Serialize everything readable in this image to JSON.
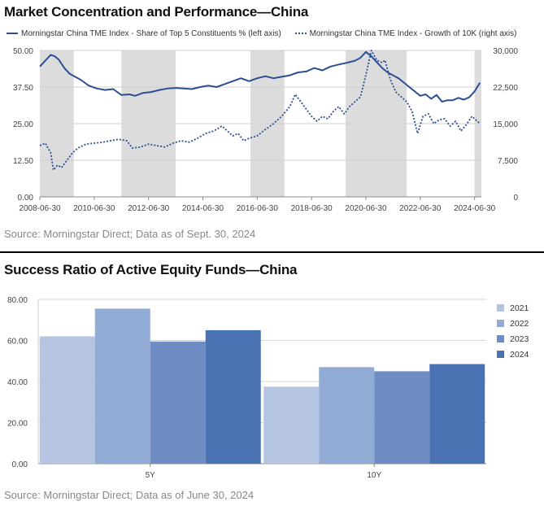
{
  "chart_data": [
    {
      "type": "line",
      "title": "Market Concentration and Performance—China",
      "source": "Source: Morningstar Direct; Data as of Sept. 30, 2024",
      "x_tick_labels": [
        "2008-06-30",
        "2010-06-30",
        "2012-06-30",
        "2014-06-30",
        "2016-06-30",
        "2018-06-30",
        "2020-06-30",
        "2022-06-30",
        "2024-06-30"
      ],
      "x_range": [
        2008.5,
        2024.75
      ],
      "left_axis": {
        "ylim": [
          0,
          50
        ],
        "ticks": [
          "50.00",
          "37.50",
          "25.00",
          "12.50",
          "0.00"
        ],
        "tick_values": [
          50,
          37.5,
          25,
          12.5,
          0
        ]
      },
      "right_axis": {
        "ylim": [
          0,
          30000
        ],
        "ticks": [
          "30,000",
          "22,500",
          "15,000",
          "7,500",
          "0"
        ],
        "tick_values": [
          30000,
          22500,
          15000,
          7500,
          0
        ]
      },
      "grid": true,
      "shaded_periods": [
        [
          2008.5,
          2009.75
        ],
        [
          2011.5,
          2013.5
        ],
        [
          2016.25,
          2017.5
        ],
        [
          2019.75,
          2022.0
        ],
        [
          2024.5,
          2024.75
        ]
      ],
      "shade_color": "#dcdcdc",
      "series": [
        {
          "name": "Morningstar China TME Index - Share of Top 5 Constituents % (left axis)",
          "axis": "left",
          "style": "solid",
          "color": "#2c4f94",
          "x": [
            2008.5,
            2008.7,
            2008.9,
            2009.05,
            2009.2,
            2009.4,
            2009.6,
            2009.8,
            2010.0,
            2010.3,
            2010.6,
            2010.9,
            2011.2,
            2011.5,
            2011.8,
            2012.0,
            2012.3,
            2012.6,
            2012.9,
            2013.2,
            2013.5,
            2013.8,
            2014.1,
            2014.4,
            2014.7,
            2015.0,
            2015.3,
            2015.6,
            2015.9,
            2016.2,
            2016.5,
            2016.8,
            2017.1,
            2017.4,
            2017.7,
            2018.0,
            2018.3,
            2018.6,
            2018.9,
            2019.2,
            2019.5,
            2019.8,
            2020.1,
            2020.3,
            2020.5,
            2020.7,
            2020.9,
            2021.1,
            2021.3,
            2021.5,
            2021.7,
            2021.9,
            2022.1,
            2022.3,
            2022.5,
            2022.7,
            2022.9,
            2023.1,
            2023.3,
            2023.5,
            2023.7,
            2023.9,
            2024.1,
            2024.3,
            2024.5,
            2024.7
          ],
          "y": [
            44.5,
            46.5,
            48.5,
            48.0,
            46.8,
            44.0,
            42.0,
            41.0,
            40.0,
            38.0,
            37.0,
            36.5,
            36.8,
            34.8,
            35.0,
            34.5,
            35.5,
            35.8,
            36.5,
            37.0,
            37.2,
            37.0,
            36.8,
            37.5,
            38.0,
            37.5,
            38.5,
            39.5,
            40.5,
            39.5,
            40.5,
            41.2,
            40.5,
            41.0,
            41.5,
            42.5,
            42.8,
            44.0,
            43.2,
            44.5,
            45.2,
            45.8,
            46.5,
            47.5,
            49.5,
            48.0,
            46.0,
            44.0,
            42.5,
            41.5,
            40.5,
            39.0,
            37.5,
            36.0,
            34.5,
            35.0,
            33.5,
            34.8,
            32.5,
            33.0,
            33.0,
            33.8,
            33.2,
            34.0,
            36.0,
            39.0
          ]
        },
        {
          "name": "Morningstar China TME Index - Growth of 10K (right axis)",
          "axis": "right",
          "style": "dotted",
          "color": "#2c4f94",
          "x": [
            2008.5,
            2008.7,
            2008.9,
            2009.0,
            2009.15,
            2009.3,
            2009.5,
            2009.7,
            2009.9,
            2010.2,
            2010.5,
            2010.8,
            2011.1,
            2011.4,
            2011.7,
            2011.9,
            2012.2,
            2012.5,
            2012.8,
            2013.1,
            2013.4,
            2013.7,
            2014.0,
            2014.3,
            2014.6,
            2014.9,
            2015.2,
            2015.4,
            2015.6,
            2015.8,
            2016.0,
            2016.2,
            2016.5,
            2016.8,
            2017.1,
            2017.4,
            2017.7,
            2017.9,
            2018.1,
            2018.3,
            2018.5,
            2018.7,
            2018.9,
            2019.1,
            2019.3,
            2019.5,
            2019.7,
            2019.9,
            2020.1,
            2020.3,
            2020.5,
            2020.7,
            2020.9,
            2021.1,
            2021.2,
            2021.4,
            2021.6,
            2021.8,
            2022.0,
            2022.2,
            2022.4,
            2022.6,
            2022.8,
            2023.0,
            2023.2,
            2023.4,
            2023.6,
            2023.8,
            2024.0,
            2024.2,
            2024.4,
            2024.6,
            2024.7
          ],
          "y": [
            10500,
            11000,
            9000,
            5500,
            6500,
            6000,
            7500,
            9000,
            10000,
            10800,
            11000,
            11200,
            11500,
            11800,
            11500,
            10000,
            10200,
            10800,
            10500,
            10200,
            11000,
            11500,
            11200,
            12000,
            13000,
            13500,
            14500,
            13500,
            12500,
            13000,
            11500,
            12000,
            12500,
            13800,
            15000,
            16500,
            18500,
            21000,
            19500,
            18000,
            16500,
            15500,
            16500,
            16000,
            17500,
            18500,
            17000,
            18500,
            19500,
            20500,
            25000,
            30000,
            28000,
            27500,
            28000,
            24000,
            21500,
            20500,
            19500,
            17500,
            13000,
            16500,
            17000,
            15000,
            15800,
            16000,
            14500,
            15500,
            13500,
            14800,
            16500,
            15500,
            15000
          ]
        }
      ]
    },
    {
      "type": "bar",
      "title": "Success Ratio of Active Equity Funds—China",
      "source": "Source: Morningstar Direct; Data as of June 30, 2024",
      "categories": [
        "5Y",
        "10Y"
      ],
      "ylim": [
        0,
        80
      ],
      "y_ticks": [
        "80.00",
        "60.00",
        "40.00",
        "20.00",
        "0.00"
      ],
      "y_tick_values": [
        80,
        60,
        40,
        20,
        0
      ],
      "grid": true,
      "legend_placement": "right",
      "series": [
        {
          "name": "2021",
          "color": "#b5c5e1",
          "values": [
            62.0,
            37.5
          ]
        },
        {
          "name": "2022",
          "color": "#92abd4",
          "values": [
            75.5,
            47.0
          ]
        },
        {
          "name": "2023",
          "color": "#6e8dc4",
          "values": [
            59.5,
            45.0
          ]
        },
        {
          "name": "2024",
          "color": "#4a72b3",
          "values": [
            65.0,
            48.5
          ]
        }
      ]
    }
  ]
}
